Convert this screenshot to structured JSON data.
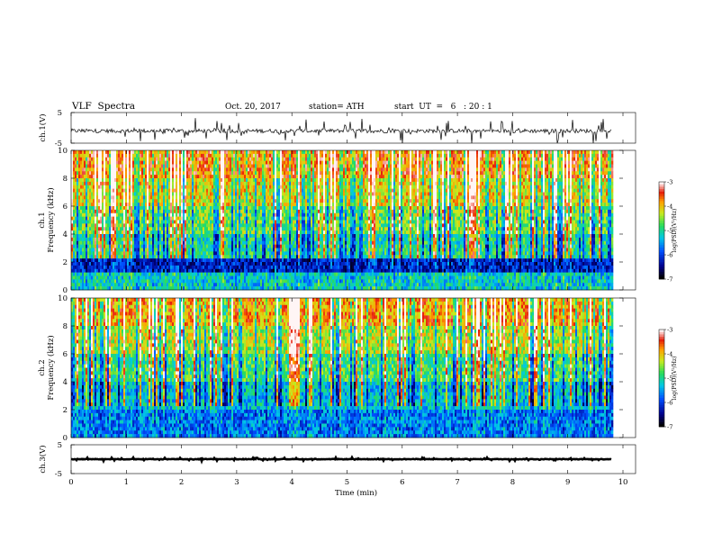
{
  "header": {
    "title": "VLF  Spectra",
    "date": "Oct. 20, 2017",
    "station": "station= ATH",
    "start": "start  UT  =   6   : 20 : 1"
  },
  "chart_data": {
    "type": "heatmap",
    "x_axis": {
      "label": "Time  (min)",
      "range": [
        0,
        10
      ],
      "ticks": [
        0,
        1,
        2,
        3,
        4,
        5,
        6,
        7,
        8,
        9,
        10
      ],
      "tick_labels": [
        "0",
        "1",
        "2",
        "3",
        "4",
        "5",
        "6",
        "7",
        "8",
        "9",
        "10"
      ],
      "data_extent_min": 9.8
    },
    "panels": [
      {
        "kind": "waveform",
        "ylabel": "ch.1(V)",
        "ylim": [
          -5,
          5
        ],
        "tick_labels": [
          "5",
          "-5"
        ],
        "baseline": -1,
        "noise_amplitude": 1.3
      },
      {
        "kind": "spectrogram",
        "ylabel_lines": [
          "ch.1",
          "Frequency  (kHz)"
        ],
        "ylim": [
          0,
          10
        ],
        "ticks": [
          0,
          2,
          4,
          6,
          8,
          10
        ],
        "tick_labels": [
          "0",
          "2",
          "4",
          "6",
          "8",
          "10"
        ],
        "colorbar": {
          "label": "log(PSD)(V²/Hz)",
          "range": [
            -7,
            -3
          ],
          "ticks": [
            -3,
            -4,
            -5,
            -6,
            -7
          ],
          "tick_labels": [
            "-3",
            "-4",
            "-5",
            "-6",
            "-7"
          ]
        },
        "bands": [
          {
            "from": 8.0,
            "to": 10.0,
            "level": -3.6
          },
          {
            "from": 6.0,
            "to": 8.0,
            "level": -4.1
          },
          {
            "from": 4.0,
            "to": 6.0,
            "level": -4.6
          },
          {
            "from": 2.2,
            "to": 4.0,
            "level": -5.0
          },
          {
            "from": 1.2,
            "to": 2.2,
            "level": -6.2
          },
          {
            "from": 0.0,
            "to": 1.2,
            "level": -5.2
          }
        ]
      },
      {
        "kind": "spectrogram",
        "ylabel_lines": [
          "ch.2",
          "Frequency  (kHz)"
        ],
        "ylim": [
          0,
          10
        ],
        "ticks": [
          0,
          2,
          4,
          6,
          8,
          10
        ],
        "tick_labels": [
          "0",
          "2",
          "4",
          "6",
          "8",
          "10"
        ],
        "colorbar": {
          "label": "log(PSD)(V²/Hz)",
          "range": [
            -7,
            -3
          ],
          "ticks": [
            -3,
            -4,
            -5,
            -6,
            -7
          ],
          "tick_labels": [
            "-3",
            "-4",
            "-5",
            "-6",
            "-7"
          ]
        },
        "bands": [
          {
            "from": 8.0,
            "to": 10.0,
            "level": -3.8
          },
          {
            "from": 6.0,
            "to": 8.0,
            "level": -4.3
          },
          {
            "from": 4.0,
            "to": 6.0,
            "level": -4.8
          },
          {
            "from": 2.0,
            "to": 4.0,
            "level": -5.3
          },
          {
            "from": 0.0,
            "to": 2.0,
            "level": -5.7
          }
        ]
      },
      {
        "kind": "waveform",
        "ylabel": "ch.3(V)",
        "ylim": [
          -5,
          5
        ],
        "tick_labels": [
          "5",
          "-5"
        ],
        "baseline": 0,
        "noise_amplitude": 0.2
      }
    ]
  }
}
